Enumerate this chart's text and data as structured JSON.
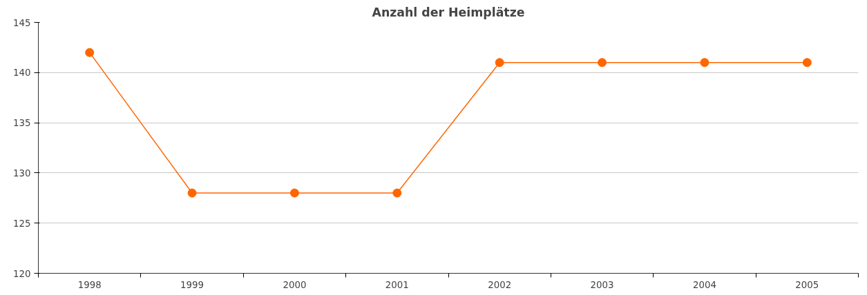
{
  "chart_data": {
    "type": "line",
    "title": "Anzahl der Heimplätze",
    "categories": [
      "1998",
      "1999",
      "2000",
      "2001",
      "2002",
      "2003",
      "2004",
      "2005"
    ],
    "series": [
      {
        "color": "#ff6600",
        "values": [
          142,
          128,
          128,
          128,
          141,
          141,
          141,
          141
        ]
      }
    ],
    "ylim": [
      120,
      145
    ],
    "yticks": [
      120,
      125,
      130,
      135,
      140,
      145
    ],
    "grid": "y",
    "marker": "circle",
    "line_style": "solid"
  }
}
